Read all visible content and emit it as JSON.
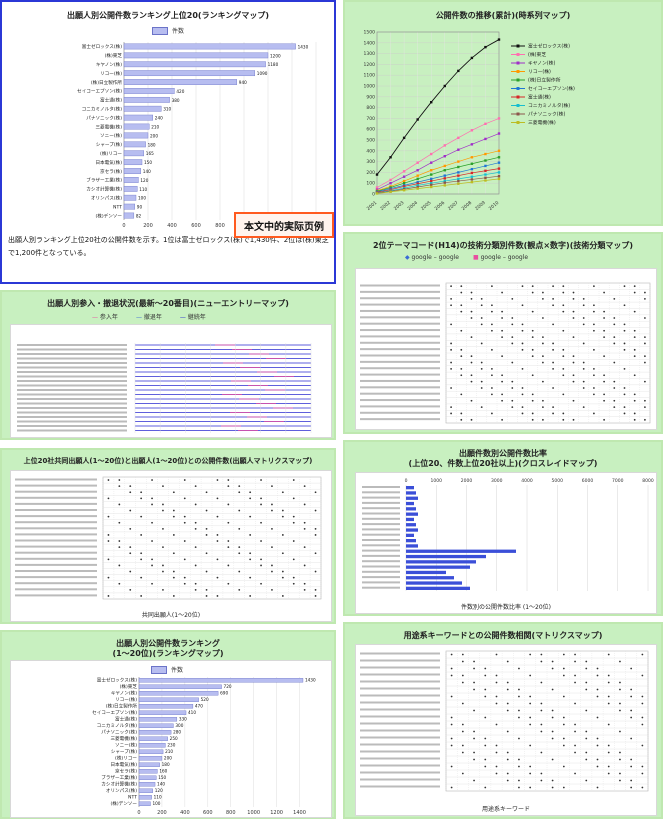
{
  "colors": {
    "green_bg": "#c8f0c0",
    "blue_border": "#2b38d6",
    "bar_fill": "#b7bdf0",
    "bar_stroke": "#6b73c8",
    "red": "#ff5a1f"
  },
  "panel1": {
    "title": "出願人別公開件数ランキング上位20(ランキングマップ)",
    "legend": "件数",
    "chart_data": {
      "type": "bar",
      "orientation": "horizontal",
      "categories": [
        "富士ゼロックス(株)",
        "(株)東芝",
        "キヤノン(株)",
        "リコー(株)",
        "(株)日立製作所",
        "セイコーエプソン(株)",
        "富士通(株)",
        "コニカミノルタ(株)",
        "パナソニック(株)",
        "三菱電機(株)",
        "ソニー(株)",
        "シャープ(株)",
        "(株)リコー",
        "日本電気(株)",
        "京セラ(株)",
        "ブラザー工業(株)",
        "カシオ計算機(株)",
        "オリンパス(株)",
        "NTT",
        "(株)デンソー"
      ],
      "values": [
        1430,
        1200,
        1180,
        1090,
        940,
        420,
        380,
        310,
        240,
        210,
        200,
        180,
        165,
        150,
        140,
        120,
        110,
        100,
        90,
        82
      ],
      "value_labels": [
        "1430",
        "1200",
        "1180",
        "1090",
        "940",
        "420",
        "380",
        "310",
        "240",
        "210",
        "200",
        "180",
        "165",
        "150",
        "140",
        "120",
        "110",
        "100",
        "90",
        "82"
      ],
      "xlim": [
        0,
        1600
      ]
    },
    "note": "出願人別ランキング上位20社の公開件数を示す。1位は富士ゼロックス(株)で1,430件、2位は(株)東芝で1,200件となっている。",
    "stamp": "本文中的実际页例"
  },
  "panel2": {
    "title": "公開件数の推移(累計)(時系列マップ)",
    "chart_data": {
      "type": "line",
      "x": [
        "2001",
        "2002",
        "2003",
        "2004",
        "2005",
        "2006",
        "2007",
        "2008",
        "2009",
        "2010"
      ],
      "ylim": [
        0,
        1500
      ],
      "yticks": [
        "0",
        "100",
        "200",
        "300",
        "400",
        "500",
        "600",
        "700",
        "800",
        "900",
        "1000",
        "1100",
        "1200",
        "1300",
        "1400",
        "1500"
      ],
      "series": [
        {
          "name": "富士ゼロックス(株)",
          "color": "#111111",
          "values": [
            180,
            340,
            520,
            690,
            850,
            1000,
            1140,
            1260,
            1360,
            1430
          ]
        },
        {
          "name": "(株)東芝",
          "color": "#ff6fb0",
          "values": [
            60,
            130,
            210,
            290,
            370,
            450,
            520,
            590,
            650,
            700
          ]
        },
        {
          "name": "キヤノン(株)",
          "color": "#a030c8",
          "values": [
            40,
            100,
            160,
            220,
            290,
            350,
            410,
            460,
            510,
            560
          ]
        },
        {
          "name": "リコー(株)",
          "color": "#ff9900",
          "values": [
            30,
            70,
            120,
            170,
            220,
            260,
            300,
            340,
            370,
            400
          ]
        },
        {
          "name": "(株)日立製作所",
          "color": "#2aa02a",
          "values": [
            25,
            60,
            100,
            140,
            180,
            220,
            250,
            280,
            310,
            340
          ]
        },
        {
          "name": "セイコーエプソン(株)",
          "color": "#1f77d4",
          "values": [
            20,
            50,
            80,
            110,
            140,
            170,
            200,
            230,
            260,
            290
          ]
        },
        {
          "name": "富士通(株)",
          "color": "#d62728",
          "values": [
            15,
            40,
            70,
            95,
            120,
            145,
            170,
            195,
            215,
            235
          ]
        },
        {
          "name": "コニカミノルタ(株)",
          "color": "#17becf",
          "values": [
            10,
            30,
            55,
            80,
            100,
            120,
            140,
            160,
            180,
            200
          ]
        },
        {
          "name": "パナソニック(株)",
          "color": "#8c564b",
          "values": [
            8,
            25,
            45,
            65,
            85,
            105,
            120,
            135,
            150,
            165
          ]
        },
        {
          "name": "三菱電機(株)",
          "color": "#bcbd22",
          "values": [
            5,
            20,
            35,
            50,
            65,
            80,
            95,
            110,
            125,
            140
          ]
        }
      ]
    }
  },
  "panel3": {
    "title": "2位テーマコード(H14)の技術分類別件数(観点×数字)(技術分類マップ)",
    "legend": [
      "google – google",
      "google – google"
    ]
  },
  "panel4": {
    "title": "出願人別参入・撤退状況(最新～20番目)(ニューエントリーマップ)",
    "legend": [
      "参入年",
      "撤退年",
      "継続年"
    ]
  },
  "panel5": {
    "title": "上位20社共同出願人(1～20位)と出願人(1～20位)との公開件数(出願人マトリクスマップ)",
    "xlabel": "共同出願人(1～20位)"
  },
  "panel6": {
    "title": "出願件数別公開件数比率",
    "subtitle": "(上位20、件数上位20社以上)(クロスレイドマップ)",
    "xticks": [
      "0",
      "1000",
      "2000",
      "3000",
      "4000",
      "5000",
      "6000",
      "7000",
      "8000"
    ],
    "footer": "件数別の公開件数比率 (1～20位)"
  },
  "panel7": {
    "title": "出願人別公開件数ランキング",
    "subtitle": "(1～20位)(ランキングマップ)",
    "legend": "件数",
    "chart_data": {
      "type": "bar",
      "orientation": "horizontal",
      "categories": [
        "富士ゼロックス(株)",
        "(株)東芝",
        "キヤノン(株)",
        "リコー(株)",
        "(株)日立製作所",
        "セイコーエプソン(株)",
        "富士通(株)",
        "コニカミノルタ(株)",
        "パナソニック(株)",
        "三菱電機(株)",
        "ソニー(株)",
        "シャープ(株)",
        "(株)リコー",
        "日本電気(株)",
        "京セラ(株)",
        "ブラザー工業(株)",
        "カシオ計算機(株)",
        "オリンパス(株)",
        "NTT",
        "(株)デンソー"
      ],
      "values": [
        1430,
        720,
        690,
        520,
        470,
        410,
        330,
        300,
        280,
        250,
        230,
        210,
        200,
        180,
        160,
        150,
        140,
        120,
        110,
        100
      ],
      "xticks": [
        "0",
        "200",
        "400",
        "600",
        "800",
        "1000",
        "1200",
        "1400"
      ],
      "xlim": [
        0,
        1500
      ]
    }
  },
  "panel8": {
    "title": "用途系キーワードとの公開件数相関(マトリクスマップ)",
    "xlabel": "用途系キーワード"
  }
}
